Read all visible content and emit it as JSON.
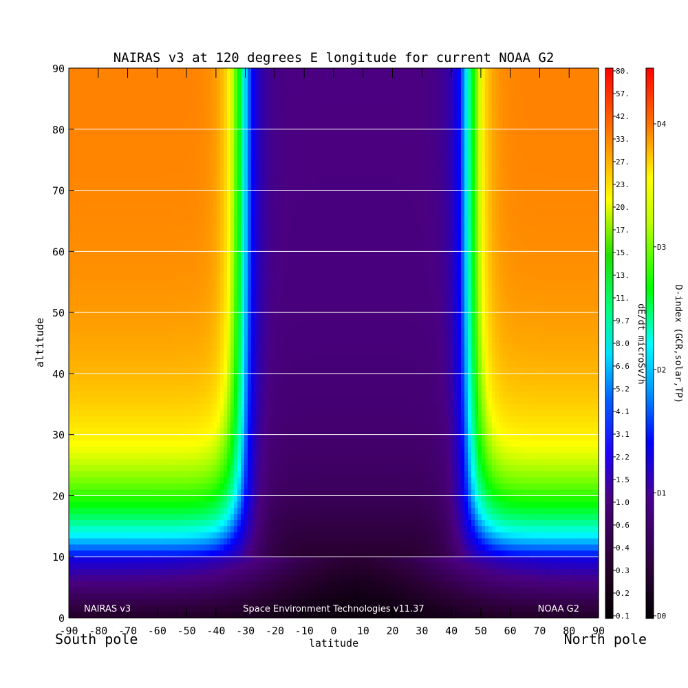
{
  "chart_data": {
    "type": "heatmap",
    "title": "NAIRAS v3 at 120 degrees E longitude for current NOAA G2",
    "xlabel": "latitude",
    "ylabel": "altitude",
    "x_ticks": [
      "-90",
      "-80",
      "-70",
      "-60",
      "-50",
      "-40",
      "-30",
      "-20",
      "-10",
      "0",
      "10",
      "20",
      "30",
      "40",
      "50",
      "60",
      "70",
      "80",
      "90"
    ],
    "y_ticks": [
      "0",
      "10",
      "20",
      "30",
      "40",
      "50",
      "60",
      "70",
      "80",
      "90"
    ],
    "xlim": [
      -90,
      90
    ],
    "ylim": [
      0,
      90
    ],
    "horizontal_gridlines": [
      10,
      20,
      30,
      40,
      50,
      60,
      70,
      80
    ],
    "x_end_labels": {
      "left": "South pole",
      "right": "North pole"
    },
    "annotations": {
      "left": "NAIRAS v3",
      "center": "Space Environment Technologies v11.37",
      "right": "NOAA G2"
    },
    "colorbar_dose": {
      "label": "dE/dt microSv/h",
      "ticks": [
        "0.1",
        "0.2",
        "0.3",
        "0.4",
        "0.6",
        "1.0",
        "1.5",
        "2.2",
        "3.1",
        "4.1",
        "5.2",
        "6.6",
        "8.0",
        "9.7",
        "11.",
        "13.",
        "15.",
        "17.",
        "20.",
        "23.",
        "27.",
        "33.",
        "42.",
        "57.",
        "80."
      ]
    },
    "colorbar_dindex": {
      "label": "D-index (GCR,solar,TP)",
      "ticks": [
        "D0",
        "D1",
        "D2",
        "D3",
        "D4"
      ]
    },
    "colormap": [
      "#000000",
      "#2a0033",
      "#4a0080",
      "#0000ff",
      "#00ffff",
      "#00ff00",
      "#ffff00",
      "#ff8000",
      "#ff0000"
    ],
    "field_description": {
      "units": "dE/dt microSv/h",
      "high_latitude_plateau_value": 30,
      "equatorial_minimum_value": 0.1,
      "south_transition_latitude": -35,
      "north_transition_latitude": 50,
      "transition_altitude": 10
    }
  }
}
